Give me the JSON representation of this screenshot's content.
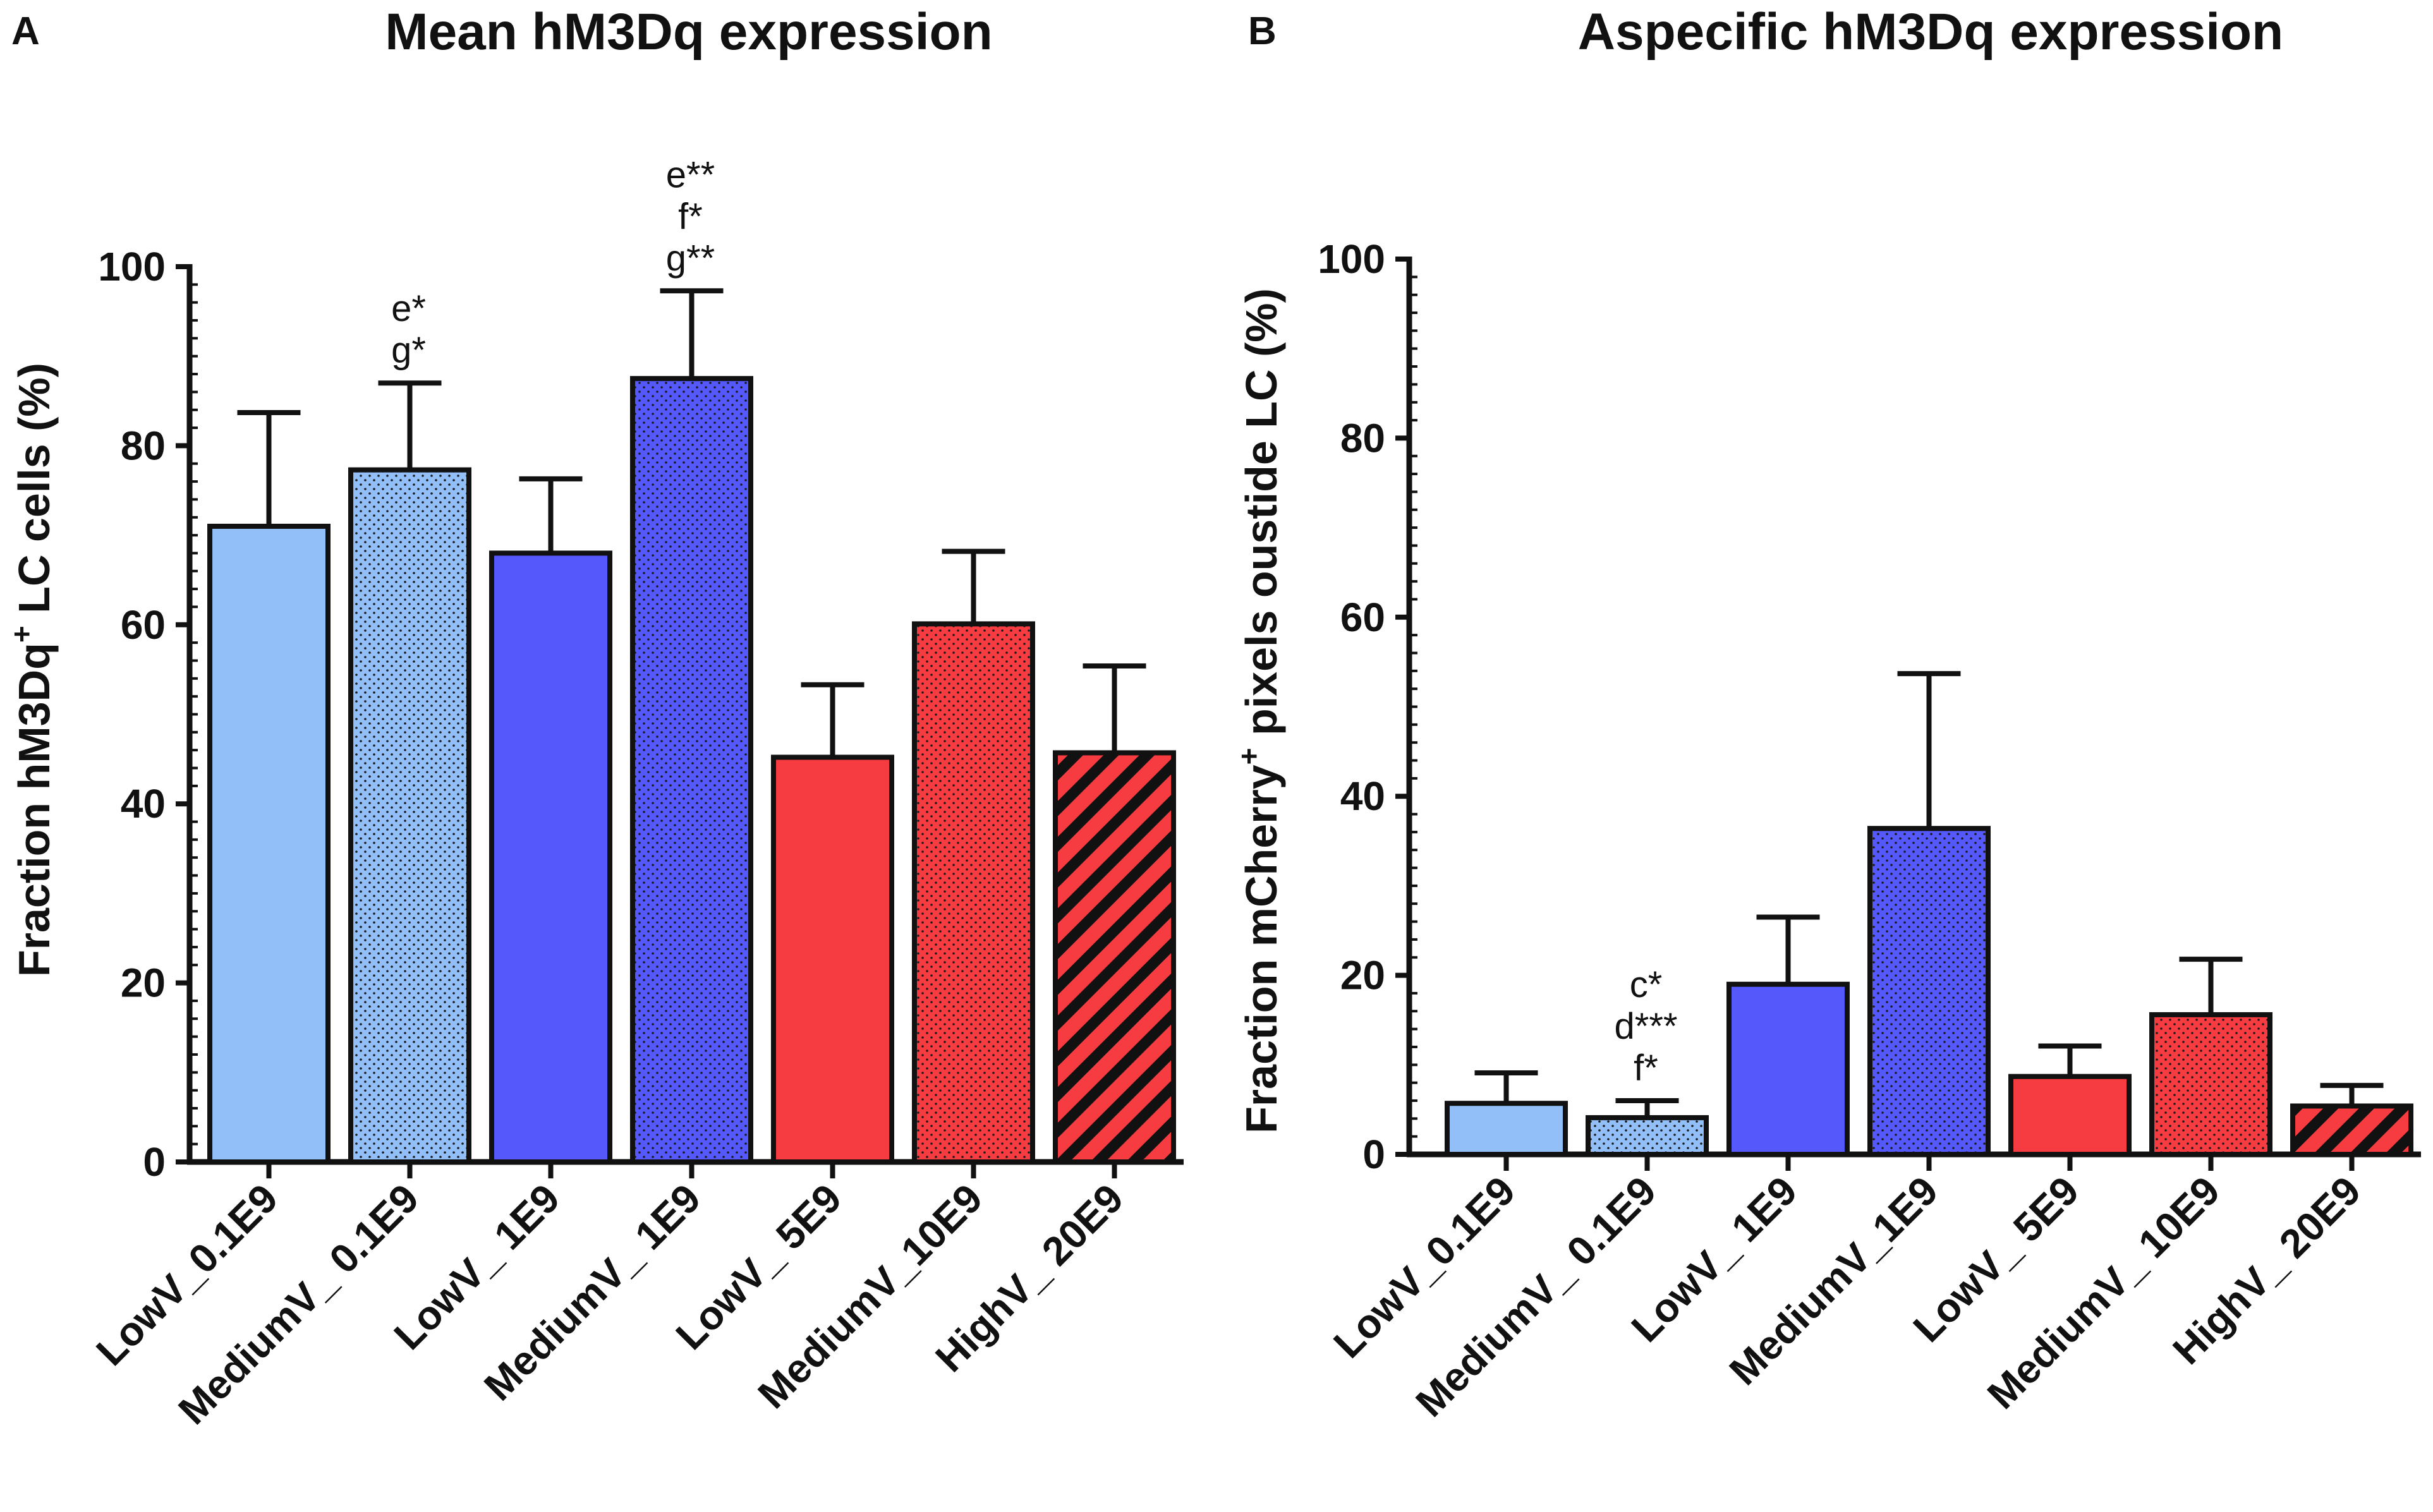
{
  "colors": {
    "light_blue": "#92bff8",
    "blue": "#5559fb",
    "red": "#f63c41",
    "axis": "#111111"
  },
  "chart_data": [
    {
      "panel": "A",
      "type": "bar",
      "title": "Mean hM3Dq expression",
      "ylabel_parts": [
        "Fraction hM3Dq",
        "+",
        " LC cells (%)"
      ],
      "xlabel": "",
      "ylim": [
        0,
        100
      ],
      "yticks": [
        0,
        20,
        40,
        60,
        80,
        100
      ],
      "categories": [
        "LowV_0.1E9",
        "MediumV_ 0.1E9",
        "LowV_ 1E9",
        "MediumV_ 1E9",
        "LowV_ 5E9",
        "MediumV_10E9",
        "HighV_ 20E9"
      ],
      "values": [
        71,
        77.3,
        68,
        87.5,
        45.2,
        60.1,
        45.7
      ],
      "errors": [
        12.7,
        9.7,
        8.3,
        9.8,
        8.1,
        8.1,
        9.7
      ],
      "fills": [
        "light_blue",
        "light_blue",
        "blue",
        "blue",
        "red",
        "red",
        "red"
      ],
      "patterns": [
        "solid",
        "dots",
        "solid",
        "dots",
        "solid",
        "dots",
        "stripes"
      ],
      "annotations": [
        {
          "category": "MediumV_ 0.1E9",
          "lines": [
            "e*",
            "g*"
          ]
        },
        {
          "category": "MediumV_ 1E9",
          "lines": [
            "e**",
            "f*",
            "g**"
          ]
        }
      ]
    },
    {
      "panel": "B",
      "type": "bar",
      "title": "Aspecific hM3Dq expression",
      "ylabel_parts": [
        "Fraction mCherry",
        "+",
        " pixels oustide LC (%)"
      ],
      "xlabel": "",
      "ylim": [
        0,
        100
      ],
      "yticks": [
        0,
        20,
        40,
        60,
        80,
        100
      ],
      "categories": [
        "LowV_0.1E9",
        "MediumV_ 0.1E9",
        "LowV_ 1E9",
        "MediumV_1E9",
        "LowV_ 5E9",
        "MediumV_ 10E9",
        "HighV_ 20E9"
      ],
      "values": [
        5.7,
        4.1,
        19,
        36.4,
        8.7,
        15.6,
        5.4
      ],
      "errors": [
        3.4,
        1.9,
        7.5,
        17.3,
        3.4,
        6.2,
        2.3
      ],
      "fills": [
        "light_blue",
        "light_blue",
        "blue",
        "blue",
        "red",
        "red",
        "red"
      ],
      "patterns": [
        "solid",
        "dots",
        "solid",
        "dots",
        "solid",
        "dots",
        "stripes"
      ],
      "annotations": [
        {
          "category": "MediumV_ 0.1E9",
          "lines": [
            "c*",
            "d***",
            "f*"
          ]
        }
      ]
    }
  ]
}
